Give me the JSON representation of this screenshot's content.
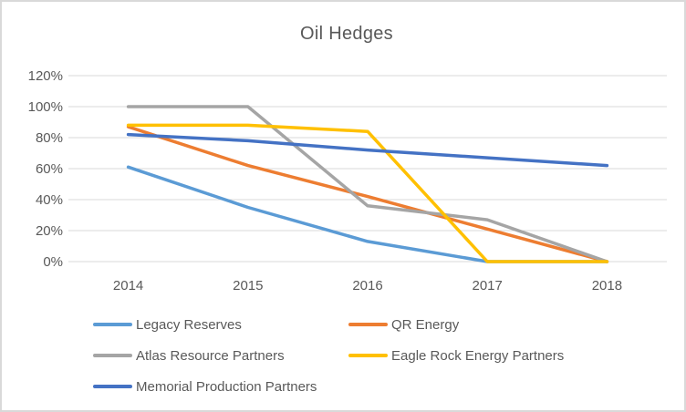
{
  "window": {
    "background_color": "#FFFFFF",
    "border_color": "#D9D9D9",
    "text_color": "#595959",
    "gridline_color": "#D9D9D9"
  },
  "chart_data": {
    "type": "line",
    "title": "Oil Hedges",
    "xlabel": "",
    "ylabel": "",
    "categories": [
      "2014",
      "2015",
      "2016",
      "2017",
      "2018"
    ],
    "series": [
      {
        "name": "Legacy Reserves",
        "color": "#5B9BD5",
        "values": [
          61,
          35,
          13,
          0,
          0
        ]
      },
      {
        "name": "QR Energy",
        "color": "#ED7D31",
        "values": [
          87,
          62,
          42,
          21,
          0
        ]
      },
      {
        "name": "Atlas Resource Partners",
        "color": "#A5A5A5",
        "values": [
          100,
          100,
          36,
          27,
          0
        ]
      },
      {
        "name": "Eagle Rock Energy Partners",
        "color": "#FFC000",
        "values": [
          88,
          88,
          84,
          0,
          0
        ]
      },
      {
        "name": "Memorial Production Partners",
        "color": "#4472C4",
        "values": [
          82,
          78,
          72,
          67,
          62
        ]
      }
    ],
    "y_axis": {
      "min": 0,
      "max": 120,
      "step": 20,
      "ticks": [
        120,
        100,
        80,
        60,
        40,
        20,
        0
      ],
      "tick_labels": [
        "120%",
        "100%",
        "80%",
        "60%",
        "40%",
        "20%",
        "0%"
      ],
      "format": "percent"
    },
    "grid": true,
    "legend_position": "bottom",
    "legend_columns": 2
  }
}
